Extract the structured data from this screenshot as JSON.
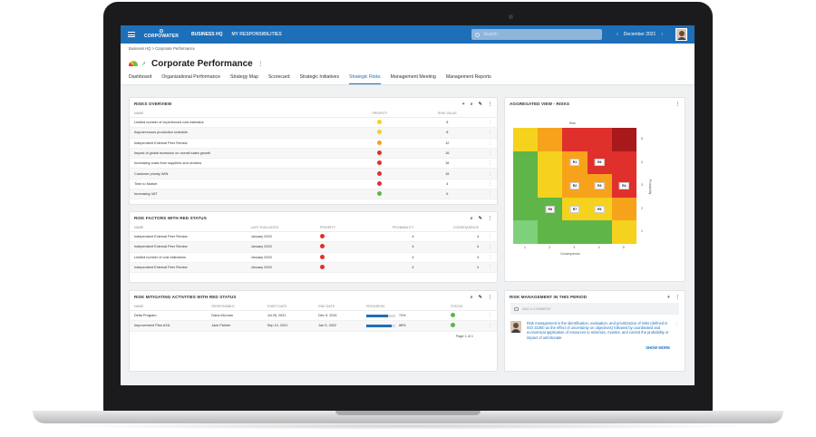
{
  "topbar": {
    "logo_line1": "CORPOWATER",
    "nav1": "BUSINESS HQ",
    "nav2": "MY RESPONSIBILITIES",
    "search_placeholder": "Search",
    "period": "December 2021"
  },
  "breadcrumb": "Business HQ  >  Corporate Performance",
  "page_title": "Corporate Performance",
  "tabs": [
    "Dashboard",
    "Organizational Performance",
    "Strategy Map",
    "Scorecard",
    "Strategic Initiatives",
    "Strategic Risks",
    "Management Meeting",
    "Management Reports"
  ],
  "active_tab": "Strategic Risks",
  "colors": {
    "red": "#e0302c",
    "orange": "#f7a21b",
    "yellow": "#f4d21e",
    "green": "#5fb548",
    "blue": "#1d6fb8"
  },
  "risks_overview": {
    "title": "RISKS OVERVIEW",
    "columns": [
      "NAME",
      "PRIORITY",
      "RISK VALUE"
    ],
    "rows": [
      {
        "name": "Limited number of experienced cost estimator",
        "priority": "yellow",
        "value": "8"
      },
      {
        "name": "Asynchronous production schedule",
        "priority": "yellow",
        "value": "8"
      },
      {
        "name": "Independent External Peer Review",
        "priority": "orange",
        "value": "12"
      },
      {
        "name": "Impact of global recession on overall sales growth",
        "priority": "red",
        "value": "16"
      },
      {
        "name": "Increasing costs from suppliers and vendors",
        "priority": "red",
        "value": "16"
      },
      {
        "name": "Customer priority WIN",
        "priority": "red",
        "value": "15"
      },
      {
        "name": "Time to Market",
        "priority": "red",
        "value": "4"
      },
      {
        "name": "Increasing VAT",
        "priority": "green",
        "value": "6"
      }
    ]
  },
  "red_status": {
    "title": "RISK FACTORS WITH RED STATUS",
    "columns": [
      "NAME",
      "LAST EVALUATED",
      "PRIORITY",
      "PROBABILITY",
      "CONSEQUENCE"
    ],
    "rows": [
      {
        "name": "Independent External Peer Review",
        "date": "January 2020",
        "probability": "4",
        "consequence": "4"
      },
      {
        "name": "Independent External Peer Review",
        "date": "January 2020",
        "probability": "4",
        "consequence": "4"
      },
      {
        "name": "Limited number of cost estimators",
        "date": "January 2020",
        "probability": "4",
        "consequence": "4"
      },
      {
        "name": "Independent External Peer Review",
        "date": "January 2020",
        "probability": "4",
        "consequence": "4"
      }
    ]
  },
  "mitigating": {
    "title": "RISK MITIGATING ACTIVITIES WITH RED STATUS",
    "columns": [
      "NAME",
      "RESPONSIBLE",
      "START DATE",
      "END DATE",
      "PROGRESS",
      "STATUS"
    ],
    "rows": [
      {
        "name": "Delta Program",
        "responsible": "Dana McLean",
        "start": "Jul 26, 2021",
        "end": "Dec 9, 2021",
        "progress_pct": 74,
        "progress": "74%"
      },
      {
        "name": "Improvement Plan AXA",
        "responsible": "Jack Palmer",
        "start": "Sep 14, 2021",
        "end": "Jan 5, 2022",
        "progress_pct": 88,
        "progress": "88%"
      }
    ],
    "pager": "Page 1 of 1"
  },
  "aggregated": {
    "title": "AGGREGATED VIEW - RISKS",
    "top_label": "Risk",
    "x_label": "Consequence",
    "y_label": "Probability",
    "x_ticks": [
      "1",
      "2",
      "3",
      "4",
      "5"
    ],
    "y_ticks": [
      "5",
      "4",
      "3",
      "2",
      "1"
    ],
    "grid": [
      [
        "yellow",
        "orange",
        "red",
        "red",
        "darkred"
      ],
      [
        "green",
        "yellow",
        "orange",
        "red",
        "red"
      ],
      [
        "green",
        "yellow",
        "orange",
        "orange",
        "red"
      ],
      [
        "green",
        "green",
        "yellow",
        "yellow",
        "orange"
      ],
      [
        "lightgreen",
        "green",
        "green",
        "green",
        "yellow"
      ]
    ],
    "chips": [
      {
        "row": 1,
        "col": 2,
        "label": "R1"
      },
      {
        "row": 1,
        "col": 3,
        "label": "R6"
      },
      {
        "row": 2,
        "col": 2,
        "label": "R2"
      },
      {
        "row": 2,
        "col": 3,
        "label": "R3"
      },
      {
        "row": 2,
        "col": 4,
        "label": "R4"
      },
      {
        "row": 3,
        "col": 1,
        "label": "R8"
      },
      {
        "row": 3,
        "col": 2,
        "label": "R7"
      },
      {
        "row": 3,
        "col": 3,
        "label": "R5"
      }
    ]
  },
  "management": {
    "title": "RISK MANAGEMENT IN THIS PERIOD",
    "add_comment": "ADD A COMMENT",
    "comment": "Risk management is the identification, evaluation, and prioritization of risks (defined in ISO 31000 as the effect of uncertainty on objectives) followed by coordinated and economical application of resources to minimize, monitor, and control the probability or impact of unfortunate",
    "show_more": "SHOW MORE"
  }
}
